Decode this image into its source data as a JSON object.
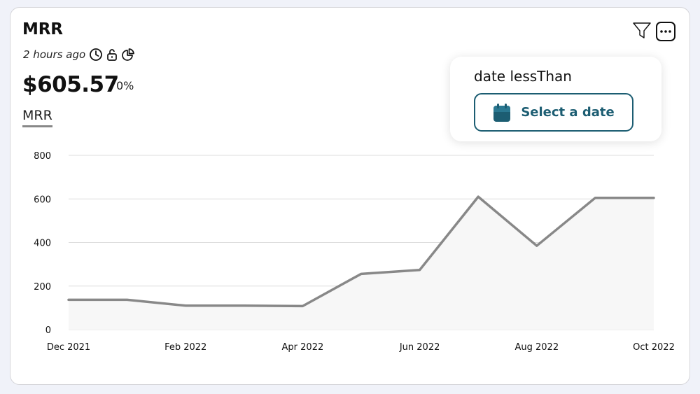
{
  "card": {
    "title": "MRR",
    "updated": "2 hours ago",
    "value": "$605.57",
    "change": "0%",
    "metric_tab": "MRR"
  },
  "popover": {
    "label": "date lessThan",
    "button_label": "Select a date"
  },
  "icons": {
    "clock": "clock-icon",
    "lock": "unlock-icon",
    "pie": "pie-chart-icon",
    "filter": "filter-icon",
    "more": "more-icon",
    "calendar": "calendar-icon"
  },
  "colors": {
    "line": "#888888",
    "area": "#f7f7f7",
    "accent": "#1c5d72",
    "grid": "#dddddd"
  },
  "chart_data": {
    "type": "area",
    "x": [
      "Dec 2021",
      "Jan 2022",
      "Feb 2022",
      "Mar 2022",
      "Apr 2022",
      "May 2022",
      "Jun 2022",
      "Jul 2022",
      "Aug 2022",
      "Sep 2022",
      "Oct 2022"
    ],
    "x_tick_labels": [
      "Dec 2021",
      "Feb 2022",
      "Apr 2022",
      "Jun 2022",
      "Aug 2022",
      "Oct 2022"
    ],
    "series": [
      {
        "values": [
          137,
          137,
          110,
          110,
          108,
          256,
          274,
          610,
          385,
          605,
          605
        ]
      }
    ],
    "ylim": [
      0,
      800
    ],
    "yticks": [
      0,
      200,
      400,
      600,
      800
    ],
    "grid": true
  }
}
